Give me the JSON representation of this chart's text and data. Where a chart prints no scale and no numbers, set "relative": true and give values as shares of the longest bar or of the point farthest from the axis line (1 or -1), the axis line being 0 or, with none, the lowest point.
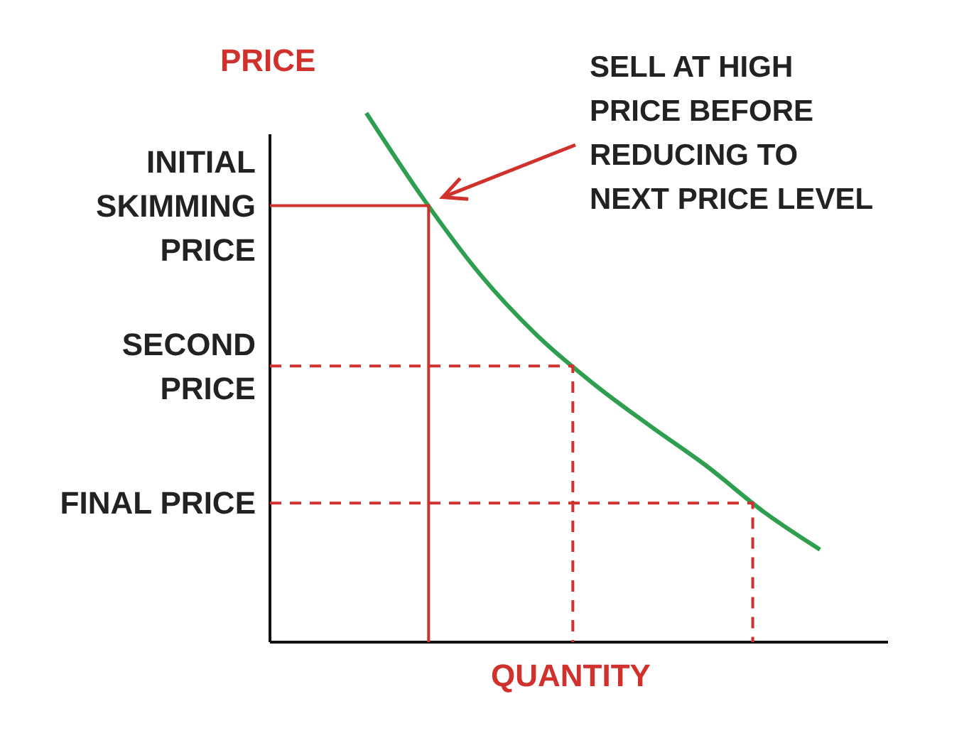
{
  "chart_data": {
    "type": "line",
    "relative": true,
    "ylabel": "PRICE",
    "xlabel": "QUANTITY",
    "categories": [
      null,
      null,
      null,
      null,
      null,
      null,
      null,
      null,
      null
    ],
    "series": [
      {
        "color": "#2e9e4f",
        "values": [
          1,
          0.839,
          0.696,
          0.581,
          0.489,
          0.409,
          0.333,
          0.247,
          0.175
        ]
      }
    ],
    "ref_lines": [
      {
        "axis": "y",
        "value": 0.825,
        "label": "INITIAL SKIMMING PRICE",
        "color": "#d0312d",
        "line_style": "solid"
      },
      {
        "axis": "y",
        "value": 0.522,
        "label": "SECOND PRICE",
        "color": "#d0312d",
        "line_style": "dashed"
      },
      {
        "axis": "y",
        "value": 0.263,
        "label": "FINAL PRICE",
        "color": "#d0312d",
        "line_style": "dashed"
      }
    ],
    "annotations": [
      "SELL AT HIGH PRICE BEFORE REDUCING TO NEXT PRICE LEVEL"
    ]
  }
}
